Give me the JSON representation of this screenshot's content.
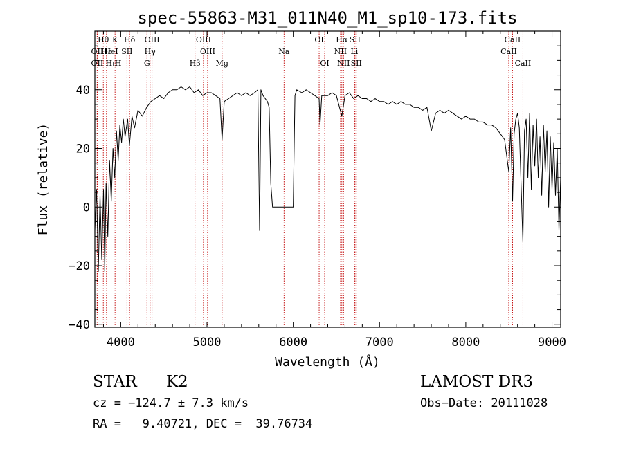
{
  "chart_data": {
    "type": "line",
    "title": "spec-55863-M31_011N40_M1_sp10-173.fits",
    "xlabel": "Wavelength (Å)",
    "ylabel": "Flux (relative)",
    "xlim": [
      3700,
      9100
    ],
    "ylim": [
      -41,
      60
    ],
    "x_ticks": [
      4000,
      5000,
      6000,
      7000,
      8000,
      9000
    ],
    "y_ticks": [
      -40,
      -20,
      0,
      20,
      40
    ],
    "x_tick_labels": [
      "4000",
      "5000",
      "6000",
      "7000",
      "8000",
      "9000"
    ],
    "y_tick_labels": [
      "−40",
      "−20",
      "0",
      "20",
      "40"
    ],
    "series": [
      {
        "name": "flux",
        "points": [
          [
            3700,
            -8
          ],
          [
            3720,
            6
          ],
          [
            3740,
            -22
          ],
          [
            3760,
            4
          ],
          [
            3780,
            -18
          ],
          [
            3800,
            6
          ],
          [
            3815,
            -22
          ],
          [
            3830,
            8
          ],
          [
            3850,
            -10
          ],
          [
            3870,
            16
          ],
          [
            3890,
            2
          ],
          [
            3910,
            20
          ],
          [
            3930,
            10
          ],
          [
            3950,
            26
          ],
          [
            3970,
            16
          ],
          [
            3990,
            28
          ],
          [
            4010,
            22
          ],
          [
            4030,
            30
          ],
          [
            4050,
            24
          ],
          [
            4080,
            30
          ],
          [
            4100,
            21
          ],
          [
            4130,
            31
          ],
          [
            4160,
            27
          ],
          [
            4200,
            33
          ],
          [
            4250,
            31
          ],
          [
            4300,
            34
          ],
          [
            4350,
            36
          ],
          [
            4400,
            37
          ],
          [
            4450,
            38
          ],
          [
            4500,
            37
          ],
          [
            4550,
            39
          ],
          [
            4600,
            40
          ],
          [
            4650,
            40
          ],
          [
            4700,
            41
          ],
          [
            4750,
            40
          ],
          [
            4800,
            41
          ],
          [
            4850,
            39
          ],
          [
            4900,
            40
          ],
          [
            4950,
            38
          ],
          [
            5000,
            39
          ],
          [
            5050,
            39
          ],
          [
            5100,
            38
          ],
          [
            5150,
            37
          ],
          [
            5175,
            23
          ],
          [
            5200,
            36
          ],
          [
            5250,
            37
          ],
          [
            5300,
            38
          ],
          [
            5350,
            39
          ],
          [
            5400,
            38
          ],
          [
            5450,
            39
          ],
          [
            5500,
            38
          ],
          [
            5550,
            39
          ],
          [
            5590,
            40
          ],
          [
            5610,
            -8
          ],
          [
            5625,
            40
          ],
          [
            5650,
            38
          ],
          [
            5700,
            36
          ],
          [
            5720,
            34
          ],
          [
            5740,
            8
          ],
          [
            5760,
            0
          ],
          [
            6000,
            0
          ],
          [
            6020,
            38
          ],
          [
            6040,
            40
          ],
          [
            6100,
            39
          ],
          [
            6150,
            40
          ],
          [
            6200,
            39
          ],
          [
            6250,
            38
          ],
          [
            6300,
            37
          ],
          [
            6310,
            28
          ],
          [
            6330,
            38
          ],
          [
            6400,
            38
          ],
          [
            6450,
            39
          ],
          [
            6500,
            38
          ],
          [
            6563,
            31
          ],
          [
            6600,
            38
          ],
          [
            6650,
            39
          ],
          [
            6700,
            37
          ],
          [
            6750,
            38
          ],
          [
            6800,
            37
          ],
          [
            6850,
            37
          ],
          [
            6900,
            36
          ],
          [
            6950,
            37
          ],
          [
            7000,
            36
          ],
          [
            7050,
            36
          ],
          [
            7100,
            35
          ],
          [
            7150,
            36
          ],
          [
            7200,
            35
          ],
          [
            7250,
            36
          ],
          [
            7300,
            35
          ],
          [
            7350,
            35
          ],
          [
            7400,
            34
          ],
          [
            7450,
            34
          ],
          [
            7500,
            33
          ],
          [
            7550,
            34
          ],
          [
            7600,
            26
          ],
          [
            7650,
            32
          ],
          [
            7700,
            33
          ],
          [
            7750,
            32
          ],
          [
            7800,
            33
          ],
          [
            7850,
            32
          ],
          [
            7900,
            31
          ],
          [
            7950,
            30
          ],
          [
            8000,
            31
          ],
          [
            8050,
            30
          ],
          [
            8100,
            30
          ],
          [
            8150,
            29
          ],
          [
            8200,
            29
          ],
          [
            8250,
            28
          ],
          [
            8300,
            28
          ],
          [
            8350,
            27
          ],
          [
            8400,
            25
          ],
          [
            8450,
            23
          ],
          [
            8498,
            12
          ],
          [
            8520,
            27
          ],
          [
            8542,
            2
          ],
          [
            8560,
            25
          ],
          [
            8580,
            30
          ],
          [
            8600,
            32
          ],
          [
            8620,
            27
          ],
          [
            8662,
            -12
          ],
          [
            8680,
            26
          ],
          [
            8700,
            30
          ],
          [
            8720,
            10
          ],
          [
            8740,
            32
          ],
          [
            8760,
            6
          ],
          [
            8780,
            28
          ],
          [
            8800,
            14
          ],
          [
            8820,
            30
          ],
          [
            8840,
            10
          ],
          [
            8860,
            24
          ],
          [
            8880,
            4
          ],
          [
            8900,
            28
          ],
          [
            8920,
            12
          ],
          [
            8940,
            26
          ],
          [
            8960,
            0
          ],
          [
            8980,
            24
          ],
          [
            9000,
            6
          ],
          [
            9020,
            22
          ],
          [
            9040,
            4
          ],
          [
            9060,
            20
          ],
          [
            9080,
            -8
          ],
          [
            9100,
            10
          ]
        ]
      }
    ],
    "lines": [
      {
        "label": "Hθ",
        "x": 3798,
        "row": 1
      },
      {
        "label": "OII",
        "x": 3727,
        "row": 2
      },
      {
        "label": "OII",
        "x": 3727,
        "row": 3
      },
      {
        "label": "Hε",
        "x": 3835,
        "row": 2
      },
      {
        "label": "K",
        "x": 3934,
        "row": 1
      },
      {
        "label": "HeI",
        "x": 3889,
        "row": 2
      },
      {
        "label": "Hη",
        "x": 3889,
        "row": 3
      },
      {
        "label": "H",
        "x": 3969,
        "row": 3
      },
      {
        "label": "Hδ",
        "x": 4102,
        "row": 1
      },
      {
        "label": "SII",
        "x": 4072,
        "row": 2
      },
      {
        "label": "OIII",
        "x": 4363,
        "row": 1
      },
      {
        "label": "Hγ",
        "x": 4340,
        "row": 2
      },
      {
        "label": "G",
        "x": 4304,
        "row": 3
      },
      {
        "label": "Hβ",
        "x": 4861,
        "row": 3
      },
      {
        "label": "OIII",
        "x": 4959,
        "row": 1
      },
      {
        "label": "OIII",
        "x": 5007,
        "row": 2
      },
      {
        "label": "Mg",
        "x": 5175,
        "row": 3
      },
      {
        "label": "Na",
        "x": 5893,
        "row": 2
      },
      {
        "label": "OI",
        "x": 6300,
        "row": 1
      },
      {
        "label": "OI",
        "x": 6364,
        "row": 3
      },
      {
        "label": "Hα",
        "x": 6563,
        "row": 1
      },
      {
        "label": "SII",
        "x": 6716,
        "row": 1
      },
      {
        "label": "NII",
        "x": 6548,
        "row": 2
      },
      {
        "label": "Li",
        "x": 6708,
        "row": 2
      },
      {
        "label": "NII",
        "x": 6583,
        "row": 3
      },
      {
        "label": "SII",
        "x": 6731,
        "row": 3
      },
      {
        "label": "CaII",
        "x": 8542,
        "row": 1
      },
      {
        "label": "CaII",
        "x": 8498,
        "row": 2
      },
      {
        "label": "CaII",
        "x": 8662,
        "row": 3
      }
    ]
  },
  "info": {
    "class_label": "STAR",
    "subclass": "K2",
    "survey": "LAMOST DR3",
    "cz": "cz = −124.7 ± 7.3 km/s",
    "obs_date": "Obs−Date: 20111028",
    "coords": "RA =   9.40721, DEC =  39.76734"
  },
  "colors": {
    "spectrum": "#000000",
    "line_marker": "#c00000",
    "axis": "#000000"
  }
}
